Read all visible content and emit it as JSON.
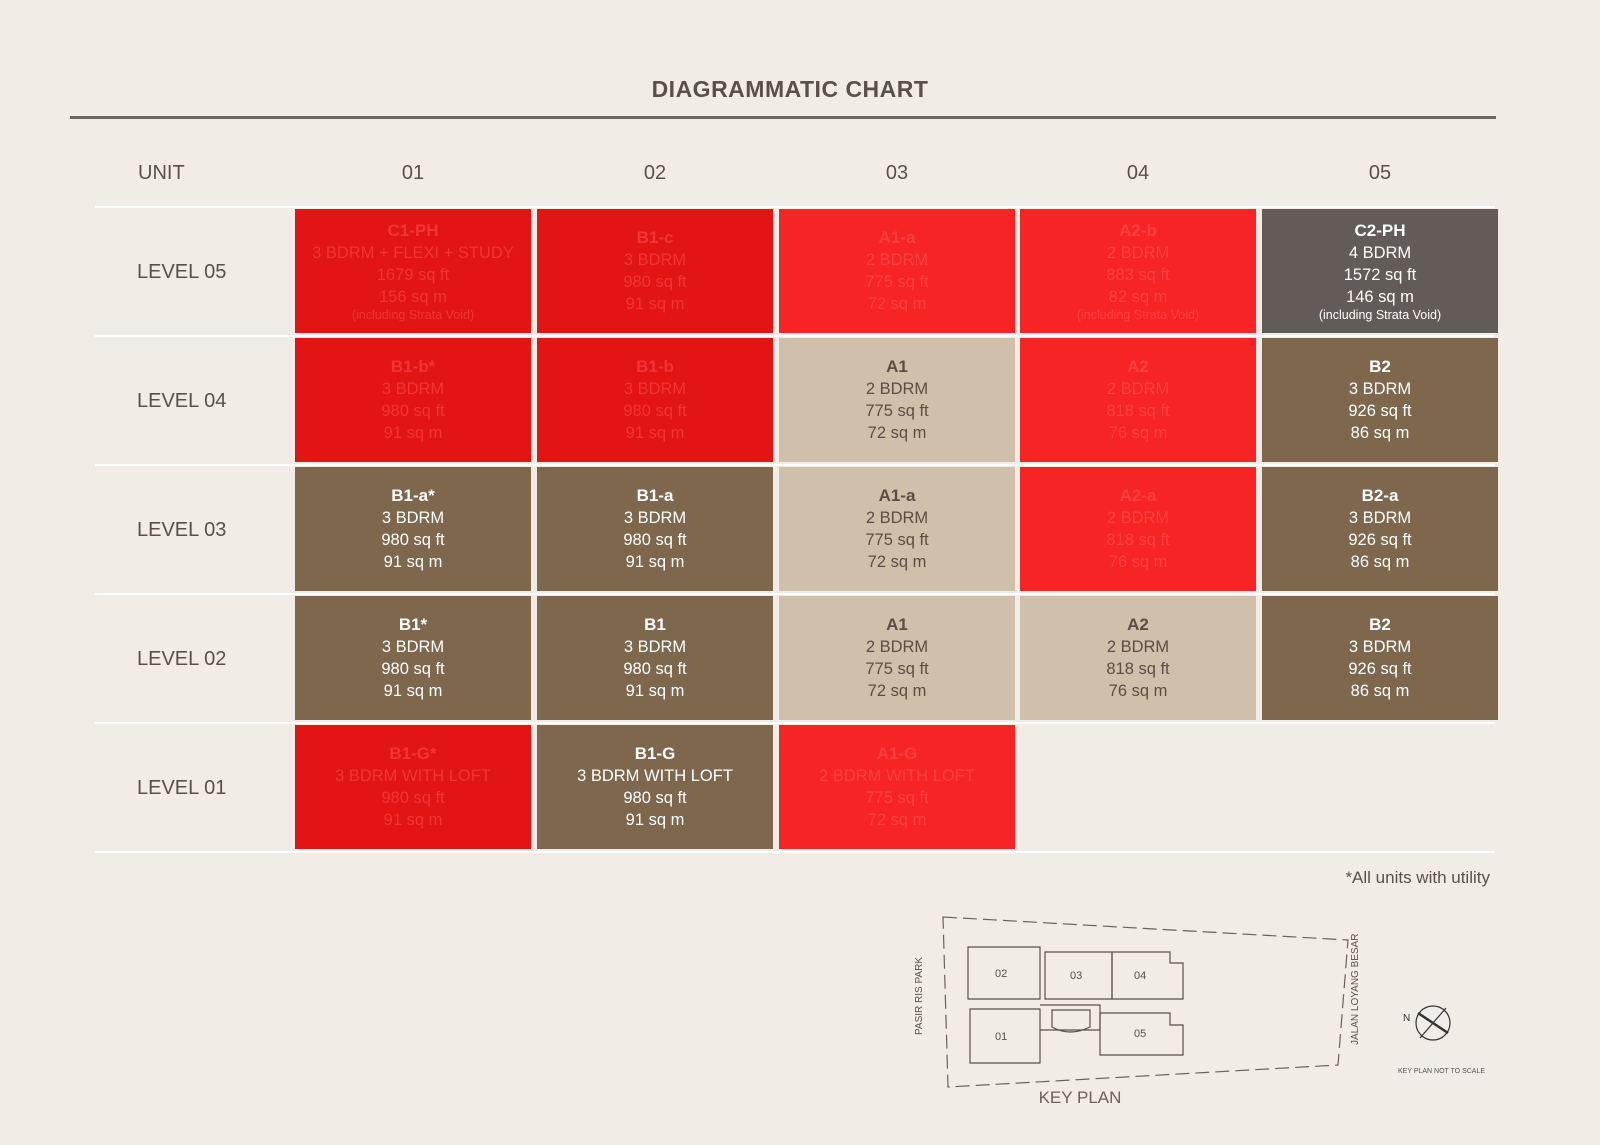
{
  "title": "DIAGRAMMATIC CHART",
  "header": {
    "unit_label": "UNIT",
    "columns": [
      "01",
      "02",
      "03",
      "04",
      "05"
    ]
  },
  "rows": [
    {
      "label": "LEVEL 05",
      "cells": [
        {
          "code": "C1-PH",
          "bdrm": "3 BDRM + FLEXI + STUDY",
          "sqft": "1679 sq ft",
          "sqm": "156 sq m",
          "note": "(including Strata Void)",
          "status": "sold-dark"
        },
        {
          "code": "B1-c",
          "bdrm": "3 BDRM",
          "sqft": "980 sq ft",
          "sqm": "91 sq m",
          "status": "sold-dark"
        },
        {
          "code": "A1-a",
          "bdrm": "2 BDRM",
          "sqft": "775 sq ft",
          "sqm": "72 sq m",
          "status": "sold-light"
        },
        {
          "code": "A2-b",
          "bdrm": "2 BDRM",
          "sqft": "883 sq ft",
          "sqm": "82 sq m",
          "note": "(including Strata Void)",
          "status": "sold-light"
        },
        {
          "code": "C2-PH",
          "bdrm": "4 BDRM",
          "sqft": "1572 sq ft",
          "sqm": "146 sq m",
          "note": "(including Strata Void)",
          "status": "grey"
        }
      ]
    },
    {
      "label": "LEVEL 04",
      "cells": [
        {
          "code": "B1-b*",
          "bdrm": "3 BDRM",
          "sqft": "980 sq ft",
          "sqm": "91 sq m",
          "status": "sold-dark"
        },
        {
          "code": "B1-b",
          "bdrm": "3 BDRM",
          "sqft": "980 sq ft",
          "sqm": "91 sq m",
          "status": "sold-dark"
        },
        {
          "code": "A1",
          "bdrm": "2 BDRM",
          "sqft": "775 sq ft",
          "sqm": "72 sq m",
          "status": "beige"
        },
        {
          "code": "A2",
          "bdrm": "2 BDRM",
          "sqft": "818 sq ft",
          "sqm": "76 sq m",
          "status": "sold-light"
        },
        {
          "code": "B2",
          "bdrm": "3 BDRM",
          "sqft": "926 sq ft",
          "sqm": "86 sq m",
          "status": "brown"
        }
      ]
    },
    {
      "label": "LEVEL 03",
      "cells": [
        {
          "code": "B1-a*",
          "bdrm": "3 BDRM",
          "sqft": "980 sq ft",
          "sqm": "91 sq m",
          "status": "brown"
        },
        {
          "code": "B1-a",
          "bdrm": "3 BDRM",
          "sqft": "980 sq ft",
          "sqm": "91 sq m",
          "status": "brown"
        },
        {
          "code": "A1-a",
          "bdrm": "2 BDRM",
          "sqft": "775 sq ft",
          "sqm": "72 sq m",
          "status": "beige"
        },
        {
          "code": "A2-a",
          "bdrm": "2 BDRM",
          "sqft": "818 sq ft",
          "sqm": "76 sq m",
          "status": "sold-light"
        },
        {
          "code": "B2-a",
          "bdrm": "3 BDRM",
          "sqft": "926 sq ft",
          "sqm": "86 sq m",
          "status": "brown"
        }
      ]
    },
    {
      "label": "LEVEL 02",
      "cells": [
        {
          "code": "B1*",
          "bdrm": "3 BDRM",
          "sqft": "980 sq ft",
          "sqm": "91 sq m",
          "status": "brown"
        },
        {
          "code": "B1",
          "bdrm": "3 BDRM",
          "sqft": "980 sq ft",
          "sqm": "91 sq m",
          "status": "brown"
        },
        {
          "code": "A1",
          "bdrm": "2 BDRM",
          "sqft": "775 sq ft",
          "sqm": "72 sq m",
          "status": "beige"
        },
        {
          "code": "A2",
          "bdrm": "2 BDRM",
          "sqft": "818 sq ft",
          "sqm": "76 sq m",
          "status": "beige"
        },
        {
          "code": "B2",
          "bdrm": "3 BDRM",
          "sqft": "926 sq ft",
          "sqm": "86 sq m",
          "status": "brown"
        }
      ]
    },
    {
      "label": "LEVEL 01",
      "cells": [
        {
          "code": "B1-G*",
          "bdrm": "3 BDRM WITH LOFT",
          "sqft": "980 sq ft",
          "sqm": "91 sq m",
          "status": "sold-dark"
        },
        {
          "code": "B1-G",
          "bdrm": "3 BDRM WITH LOFT",
          "sqft": "980 sq ft",
          "sqm": "91 sq m",
          "status": "brown"
        },
        {
          "code": "A1-G",
          "bdrm": "2 BDRM WITH LOFT",
          "sqft": "775 sq ft",
          "sqm": "72 sq m",
          "status": "sold-light"
        }
      ]
    }
  ],
  "footnote": "*All units with utility",
  "key_plan": {
    "label": "KEY PLAN",
    "road_left": "PASIR RIS PARK",
    "road_right": "JALAN LOYANG BESAR",
    "north": "N",
    "scale_note": "KEY PLAN NOT TO SCALE",
    "blocks": [
      "02",
      "03",
      "04",
      "01",
      "05"
    ]
  },
  "colors": {
    "sold_dark": "#e21414",
    "sold_light": "#f62424",
    "brown": "#7e674d",
    "beige": "#d0bfaa",
    "grey": "#625b57",
    "background": "#f1ece6"
  }
}
